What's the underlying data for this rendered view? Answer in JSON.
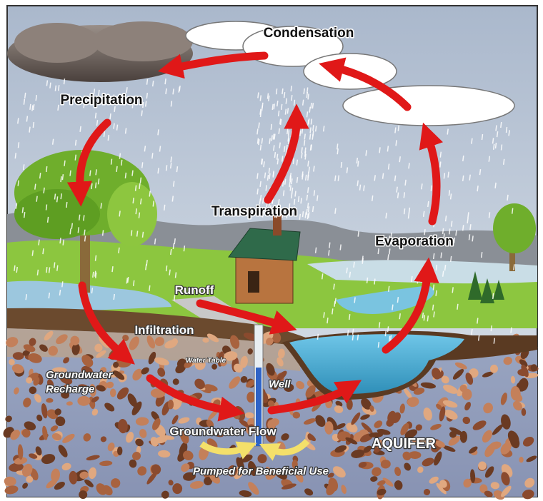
{
  "labels": [
    "Condensation",
    "Precipitation",
    "Transpiration",
    "Evaporation",
    "Runoff",
    "Infiltration",
    "Water Table",
    "Groundwater",
    "Recharge",
    "Well",
    "Groundwater Flow",
    "AQUIFER",
    "Pumped for Beneficial Use"
  ]
}
